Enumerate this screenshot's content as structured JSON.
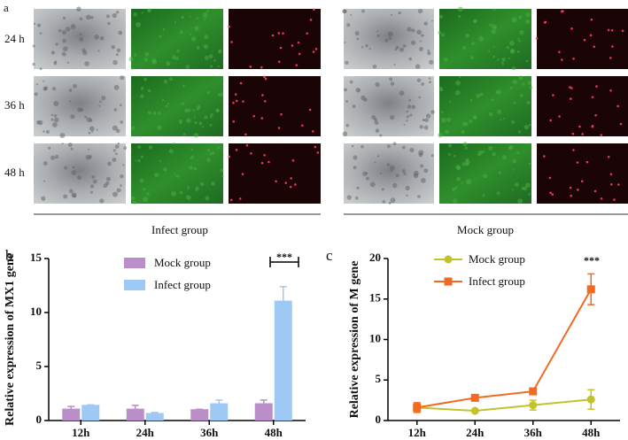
{
  "figure": {
    "panel_a": "a",
    "panel_b": "b",
    "panel_c": "c",
    "rows": [
      "24 h",
      "36 h",
      "48 h"
    ],
    "groups": [
      "Infect group",
      "Mock group"
    ]
  },
  "chart_data": [
    {
      "type": "bar",
      "ylabel": "Relative expression of MX1 gene",
      "categories": [
        "12h",
        "24h",
        "36h",
        "48h"
      ],
      "series": [
        {
          "name": "Mock group",
          "color": "#b98ec9",
          "values": [
            1.1,
            1.1,
            1.05,
            1.6
          ],
          "errors": [
            0.2,
            0.3,
            0,
            0.3
          ]
        },
        {
          "name": "Infect group",
          "color": "#9ec9f5",
          "values": [
            1.45,
            0.7,
            1.6,
            11.1
          ],
          "errors": [
            0,
            0.05,
            0.3,
            1.3
          ]
        }
      ],
      "ylim": [
        0,
        15
      ],
      "yticks": [
        0,
        5,
        10,
        15
      ],
      "annotation": "***"
    },
    {
      "type": "line",
      "ylabel": "Relative expression of M gene",
      "categories": [
        "12h",
        "24h",
        "36h",
        "48h"
      ],
      "series": [
        {
          "name": "Mock group",
          "color": "#c2c22c",
          "values": [
            1.6,
            1.2,
            1.9,
            2.6
          ],
          "errors": [
            0.5,
            0.1,
            0.6,
            1.2
          ]
        },
        {
          "name": "Infect group",
          "color": "#f26a21",
          "values": [
            1.6,
            2.8,
            3.6,
            16.2
          ],
          "errors": [
            0.6,
            0.2,
            0.2,
            1.9
          ]
        }
      ],
      "ylim": [
        0,
        20
      ],
      "yticks": [
        0,
        5,
        10,
        15,
        20
      ],
      "annotation": "***"
    }
  ]
}
